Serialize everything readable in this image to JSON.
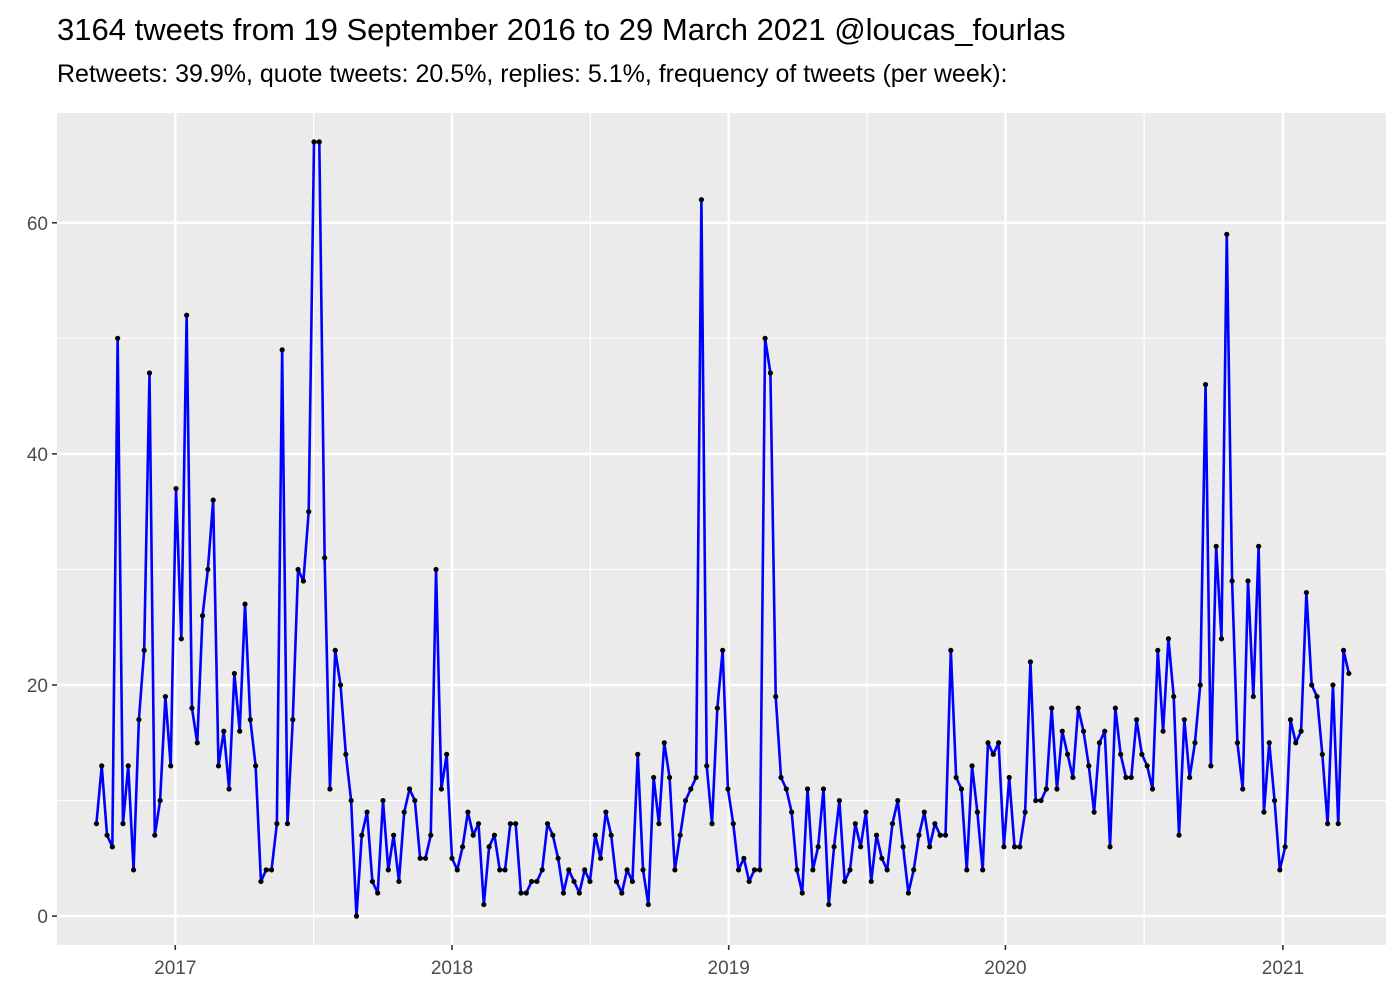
{
  "chart_data": {
    "type": "line",
    "title": "3164 tweets from 19 September 2016 to 29 March 2021 @loucas_fourlas",
    "subtitle": "Retweets: 39.9%, quote tweets: 20.5%, replies: 5.1%, frequency of tweets (per week):",
    "xlabel": "",
    "ylabel": "",
    "x_range": [
      "2016-07-29",
      "2021-05-17"
    ],
    "y_range": [
      -2.5,
      69.5
    ],
    "x_ticks": [
      {
        "label": "2017",
        "date": "2017-01-01"
      },
      {
        "label": "2018",
        "date": "2018-01-01"
      },
      {
        "label": "2019",
        "date": "2019-01-01"
      },
      {
        "label": "2020",
        "date": "2020-01-01"
      },
      {
        "label": "2021",
        "date": "2021-01-01"
      }
    ],
    "y_ticks": [
      0,
      20,
      40,
      60
    ],
    "grid": true,
    "line_color": "#0000ff",
    "point_color": "#000000",
    "panel_background": "#ebebeb",
    "series": [
      {
        "start_date": "2016-09-19",
        "interval_days": 7,
        "values": [
          8,
          13,
          7,
          6,
          50,
          8,
          13,
          4,
          17,
          23,
          47,
          7,
          10,
          19,
          13,
          37,
          24,
          52,
          18,
          15,
          26,
          30,
          36,
          13,
          16,
          11,
          21,
          16,
          27,
          17,
          13,
          3,
          4,
          4,
          8,
          49,
          8,
          17,
          30,
          29,
          35,
          67,
          67,
          31,
          11,
          23,
          20,
          14,
          10,
          0,
          7,
          9,
          3,
          2,
          10,
          4,
          7,
          3,
          9,
          11,
          10,
          5,
          5,
          7,
          30,
          11,
          14,
          5,
          4,
          6,
          9,
          7,
          8,
          1,
          6,
          7,
          4,
          4,
          8,
          8,
          2,
          2,
          3,
          3,
          4,
          8,
          7,
          5,
          2,
          4,
          3,
          2,
          4,
          3,
          7,
          5,
          9,
          7,
          3,
          2,
          4,
          3,
          14,
          4,
          1,
          12,
          8,
          15,
          12,
          4,
          7,
          10,
          11,
          12,
          62,
          13,
          8,
          18,
          23,
          11,
          8,
          4,
          5,
          3,
          4,
          4,
          50,
          47,
          19,
          12,
          11,
          9,
          4,
          2,
          11,
          4,
          6,
          11,
          1,
          6,
          10,
          3,
          4,
          8,
          6,
          9,
          3,
          7,
          5,
          4,
          8,
          10,
          6,
          2,
          4,
          7,
          9,
          6,
          8,
          7,
          7,
          23,
          12,
          11,
          4,
          13,
          9,
          4,
          15,
          14,
          15,
          6,
          12,
          6,
          6,
          9,
          22,
          10,
          10,
          11,
          18,
          11,
          16,
          14,
          12,
          18,
          16,
          13,
          9,
          15,
          16,
          6,
          18,
          14,
          12,
          12,
          17,
          14,
          13,
          11,
          23,
          16,
          24,
          19,
          7,
          17,
          12,
          15,
          20,
          46,
          13,
          32,
          24,
          59,
          29,
          15,
          11,
          29,
          19,
          32,
          9,
          15,
          10,
          4,
          6,
          17,
          15,
          16,
          28,
          20,
          19,
          14,
          8,
          20,
          8,
          23,
          21
        ]
      }
    ]
  }
}
